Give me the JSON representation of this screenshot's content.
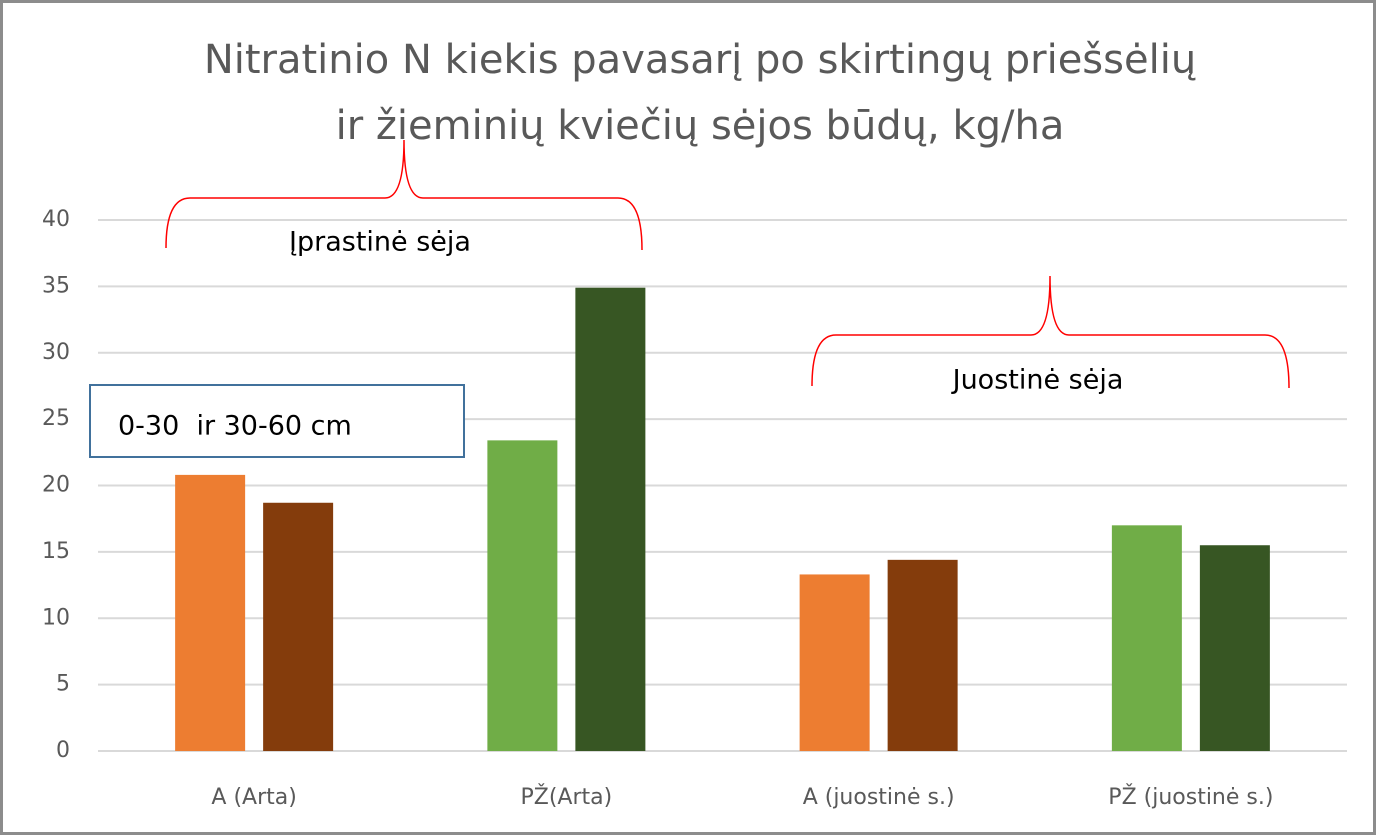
{
  "chart_data": {
    "type": "bar",
    "title": [
      "Nitratinio N kiekis pavasarį po skirtingų priešsėlių",
      "ir žieminių kviečių sėjos būdų, kg/ha"
    ],
    "categories": [
      "A (Arta)",
      "PŽ(Arta)",
      "A (juostinė s.)",
      "PŽ (juostinė s.)"
    ],
    "series": [
      {
        "values": [
          20.8,
          23.4,
          13.3,
          17.0
        ],
        "colors": [
          "#ed7d31",
          "#70ad47",
          "#ed7d31",
          "#70ad47"
        ]
      },
      {
        "values": [
          18.7,
          34.9,
          14.4,
          15.5
        ],
        "colors": [
          "#843c0c",
          "#375623",
          "#843c0c",
          "#375623"
        ]
      }
    ],
    "annotations": [
      "Įprastinė sėja",
      "Juostinė sėja",
      "0-30  ir 30-60 cm"
    ],
    "ylim": [
      0,
      40
    ],
    "yticks": [
      0,
      5,
      10,
      15,
      20,
      25,
      30,
      35,
      40
    ],
    "grid": true
  }
}
